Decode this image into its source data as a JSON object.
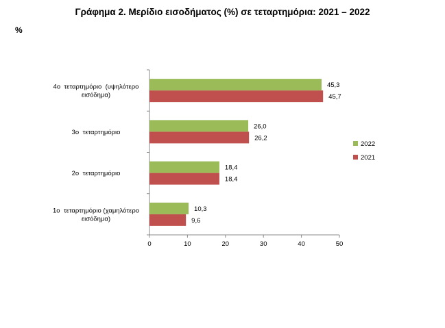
{
  "chart_data": {
    "type": "bar",
    "orientation": "horizontal",
    "title": "Γράφημα 2. Μερίδιο εισοδήματος (%) σε τεταρτημόρια: 2021 – 2022",
    "unit_label": "%",
    "categories": [
      [
        "4ο  τεταρτημόριο  (υψηλότερο",
        "εισόδημα)"
      ],
      [
        "3ο  τεταρτημόριο"
      ],
      [
        "2ο  τεταρτημόριο"
      ],
      [
        "1ο  τεταρτημόριο (χαμηλότερο",
        "εισόδημα)"
      ]
    ],
    "series": [
      {
        "name": "2022",
        "color": "#9bbb59",
        "values": [
          45.3,
          26.0,
          18.4,
          10.3
        ],
        "labels": [
          "45,3",
          "26,0",
          "18,4",
          "10,3"
        ]
      },
      {
        "name": "2021",
        "color": "#c0504d",
        "values": [
          45.7,
          26.2,
          18.4,
          9.6
        ],
        "labels": [
          "45,7",
          "26,2",
          "18,4",
          "9,6"
        ]
      }
    ],
    "xlim": [
      0,
      50
    ],
    "xticks": [
      0,
      10,
      20,
      30,
      40,
      50
    ],
    "grid": false,
    "legend_position": "right"
  }
}
